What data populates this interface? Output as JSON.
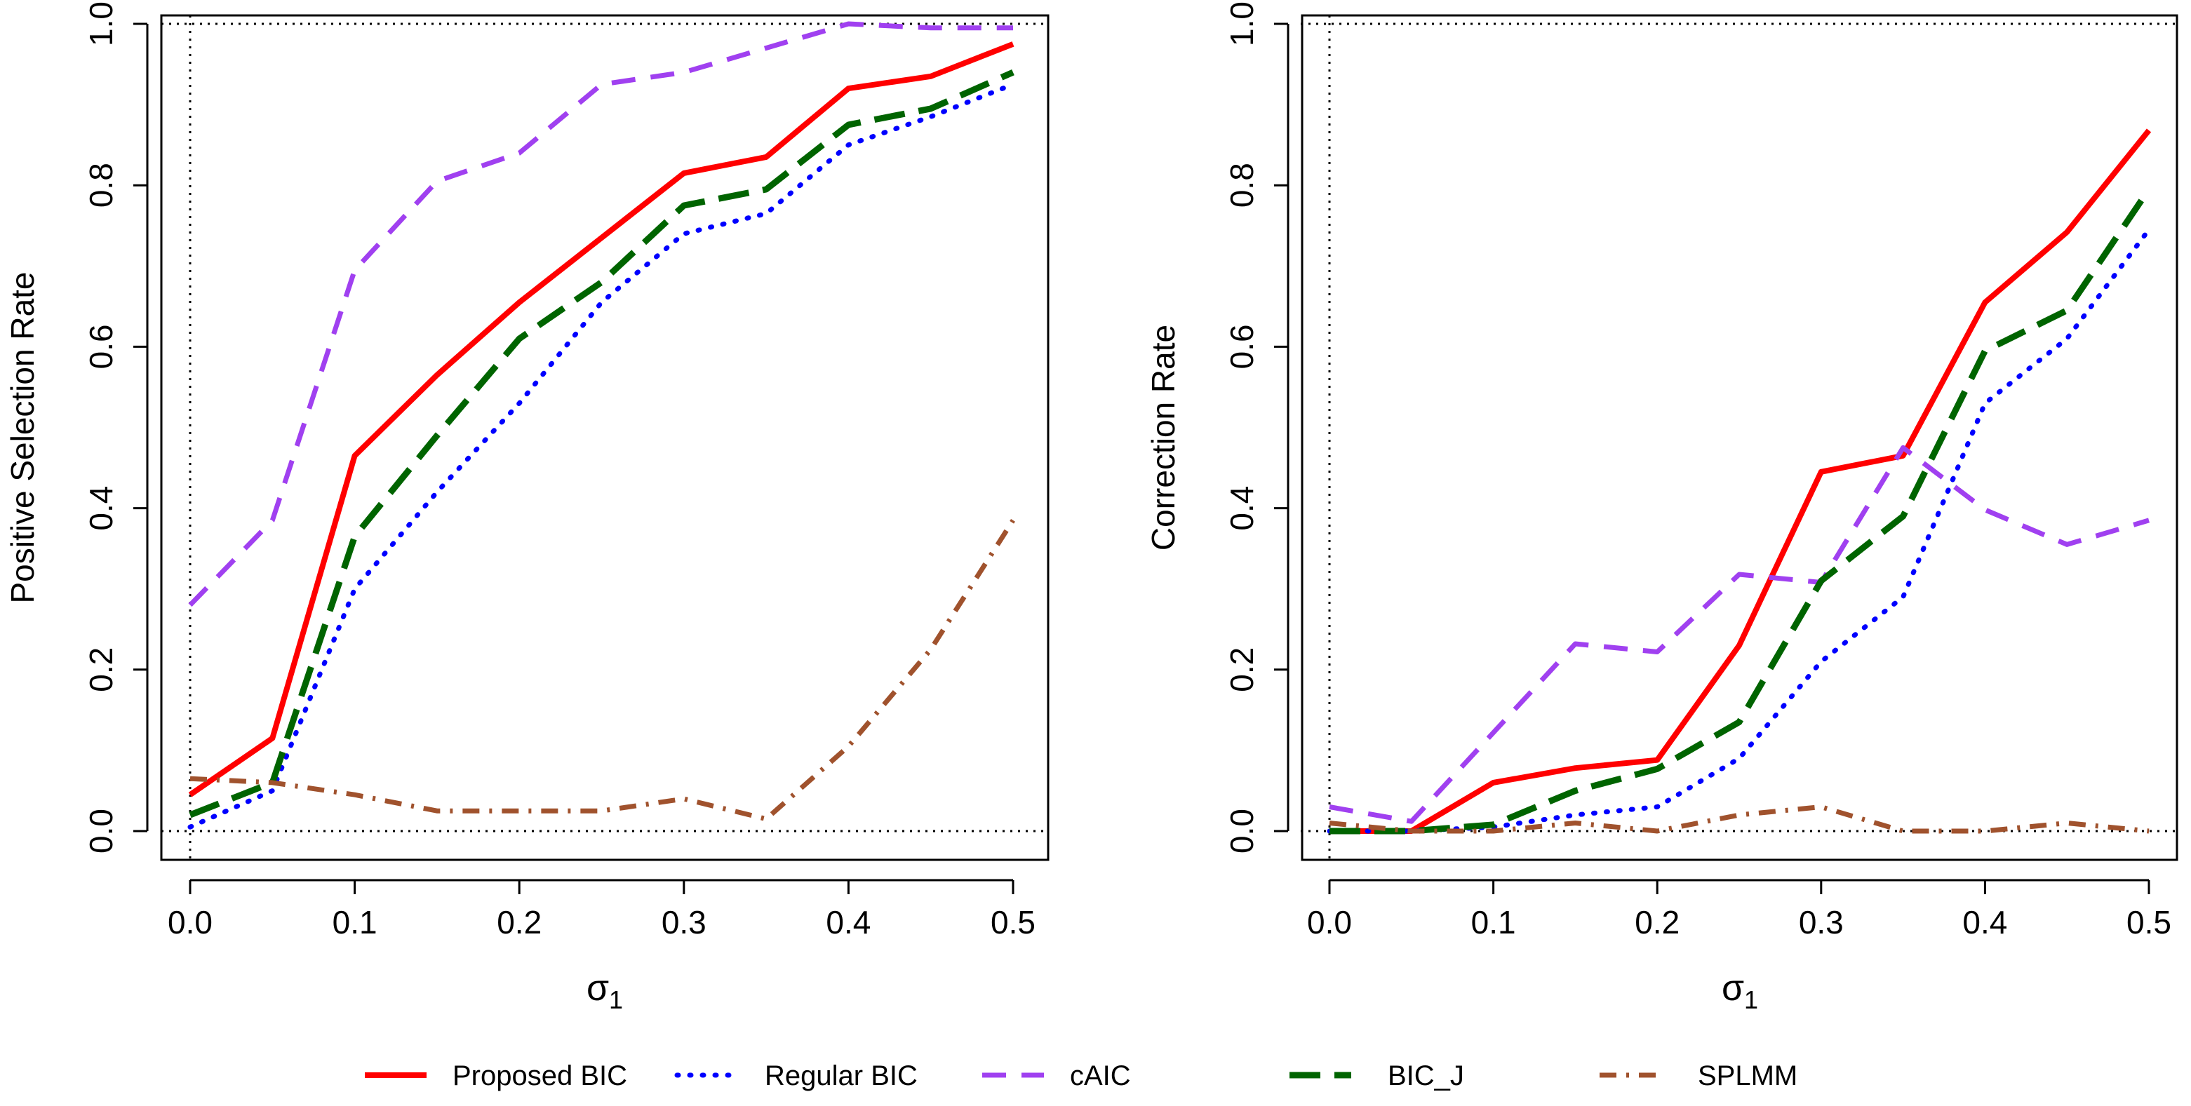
{
  "colors": {
    "Proposed BIC": "#ff0000",
    "Regular BIC": "#0000ff",
    "cAIC": "#a040f0",
    "BIC_J": "#006400",
    "SPLMM": "#a0522d"
  },
  "chart_data": [
    {
      "type": "line",
      "title": "",
      "xlabel": "σ",
      "xlabel_subscript": "1",
      "ylabel": "Positive Selection Rate",
      "xlim": [
        0,
        0.5
      ],
      "ylim": [
        0,
        1
      ],
      "xticks": [
        "0.0",
        "0.1",
        "0.2",
        "0.3",
        "0.4",
        "0.5"
      ],
      "yticks": [
        "0.0",
        "0.2",
        "0.4",
        "0.6",
        "0.8",
        "1.0"
      ],
      "reference_lines": {
        "h": [
          0,
          1
        ],
        "v": [
          0
        ]
      },
      "x": [
        0,
        0.05,
        0.1,
        0.15,
        0.2,
        0.25,
        0.3,
        0.35,
        0.4,
        0.45,
        0.5
      ],
      "series": [
        {
          "name": "Proposed BIC",
          "values": [
            0.045,
            0.115,
            0.465,
            0.565,
            0.655,
            0.735,
            0.815,
            0.835,
            0.92,
            0.935,
            0.975
          ]
        },
        {
          "name": "Regular BIC",
          "values": [
            0.005,
            0.05,
            0.3,
            0.42,
            0.53,
            0.655,
            0.74,
            0.765,
            0.85,
            0.885,
            0.925
          ]
        },
        {
          "name": "cAIC",
          "values": [
            0.28,
            0.385,
            0.695,
            0.805,
            0.84,
            0.925,
            0.94,
            0.97,
            1.0,
            0.995,
            0.995
          ]
        },
        {
          "name": "BIC_J",
          "values": [
            0.02,
            0.06,
            0.365,
            0.49,
            0.61,
            0.68,
            0.775,
            0.795,
            0.875,
            0.895,
            0.94
          ]
        },
        {
          "name": "SPLMM",
          "values": [
            0.065,
            0.06,
            0.045,
            0.025,
            0.025,
            0.025,
            0.04,
            0.015,
            0.105,
            0.225,
            0.385
          ]
        }
      ]
    },
    {
      "type": "line",
      "title": "",
      "xlabel": "σ",
      "xlabel_subscript": "1",
      "ylabel": "Correction Rate",
      "xlim": [
        0,
        0.5
      ],
      "ylim": [
        0,
        1
      ],
      "xticks": [
        "0.0",
        "0.1",
        "0.2",
        "0.3",
        "0.4",
        "0.5"
      ],
      "yticks": [
        "0.0",
        "0.2",
        "0.4",
        "0.6",
        "0.8",
        "1.0"
      ],
      "reference_lines": {
        "h": [
          0,
          1
        ],
        "v": [
          0
        ]
      },
      "x": [
        0,
        0.05,
        0.1,
        0.15,
        0.2,
        0.25,
        0.3,
        0.35,
        0.4,
        0.45,
        0.5
      ],
      "series": [
        {
          "name": "Proposed BIC",
          "values": [
            0.0,
            0.0,
            0.06,
            0.078,
            0.088,
            0.23,
            0.445,
            0.465,
            0.655,
            0.742,
            0.868
          ]
        },
        {
          "name": "Regular BIC",
          "values": [
            0.0,
            0.0,
            0.005,
            0.02,
            0.03,
            0.09,
            0.21,
            0.29,
            0.53,
            0.61,
            0.745
          ]
        },
        {
          "name": "cAIC",
          "values": [
            0.03,
            0.012,
            0.122,
            0.232,
            0.222,
            0.318,
            0.308,
            0.475,
            0.398,
            0.355,
            0.385
          ]
        },
        {
          "name": "BIC_J",
          "values": [
            0.0,
            0.0,
            0.008,
            0.05,
            0.077,
            0.135,
            0.31,
            0.39,
            0.595,
            0.645,
            0.795
          ]
        },
        {
          "name": "SPLMM",
          "values": [
            0.01,
            0.0,
            0.0,
            0.01,
            0.0,
            0.02,
            0.03,
            0.0,
            0.0,
            0.01,
            0.0
          ]
        }
      ]
    }
  ],
  "legend": {
    "placement": "bottom",
    "entries": [
      "Proposed BIC",
      "Regular BIC",
      "cAIC",
      "BIC_J",
      "SPLMM"
    ]
  }
}
